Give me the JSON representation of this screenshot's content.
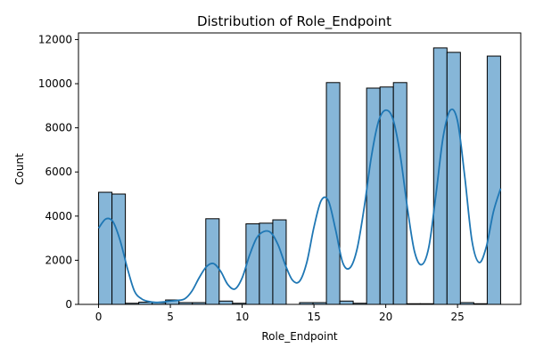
{
  "chart_data": {
    "type": "bar",
    "title": "Distribution of Role_Endpoint",
    "xlabel": "Role_Endpoint",
    "ylabel": "Count",
    "xlim": [
      -1.4,
      29.4
    ],
    "ylim": [
      0,
      12300
    ],
    "xticks": [
      0,
      5,
      10,
      15,
      20,
      25
    ],
    "yticks": [
      0,
      2000,
      4000,
      6000,
      8000,
      10000,
      12000
    ],
    "bin_start": 0,
    "bin_width": 0.9333,
    "values": [
      5080,
      5000,
      50,
      100,
      80,
      200,
      80,
      80,
      3880,
      150,
      50,
      3650,
      3680,
      3830,
      0,
      80,
      80,
      10050,
      150,
      50,
      9800,
      9850,
      10050,
      30,
      30,
      11620,
      11420,
      80,
      30,
      11250
    ],
    "kde": {
      "x": [
        0,
        0.5,
        1,
        1.5,
        2,
        2.5,
        3,
        3.5,
        4,
        4.5,
        5,
        5.5,
        6,
        6.5,
        7,
        7.5,
        8,
        8.5,
        9,
        9.5,
        10,
        10.5,
        11,
        11.5,
        12,
        12.5,
        13,
        13.5,
        14,
        14.5,
        15,
        15.5,
        16,
        16.5,
        17,
        17.5,
        18,
        18.5,
        19,
        19.5,
        20,
        20.5,
        21,
        21.5,
        22,
        22.5,
        23,
        23.5,
        24,
        24.5,
        25,
        25.5,
        26,
        26.5,
        27,
        27.5,
        28
      ],
      "y": [
        3450,
        3870,
        3750,
        2900,
        1650,
        600,
        250,
        130,
        90,
        110,
        150,
        180,
        250,
        600,
        1200,
        1700,
        1850,
        1500,
        900,
        700,
        1200,
        2200,
        3000,
        3300,
        3250,
        2700,
        1800,
        1100,
        1050,
        1900,
        3500,
        4700,
        4700,
        3400,
        1900,
        1650,
        2500,
        4400,
        6700,
        8300,
        8800,
        8400,
        6800,
        4400,
        2400,
        1800,
        2600,
        5000,
        7600,
        8800,
        8300,
        5800,
        2900,
        1900,
        2600,
        4200,
        5250
      ]
    },
    "grid": false,
    "legend": "none",
    "colors": {
      "bar_fill": "#86b6d8",
      "bar_edge": "#000000",
      "kde_line": "#1f77b4"
    }
  }
}
